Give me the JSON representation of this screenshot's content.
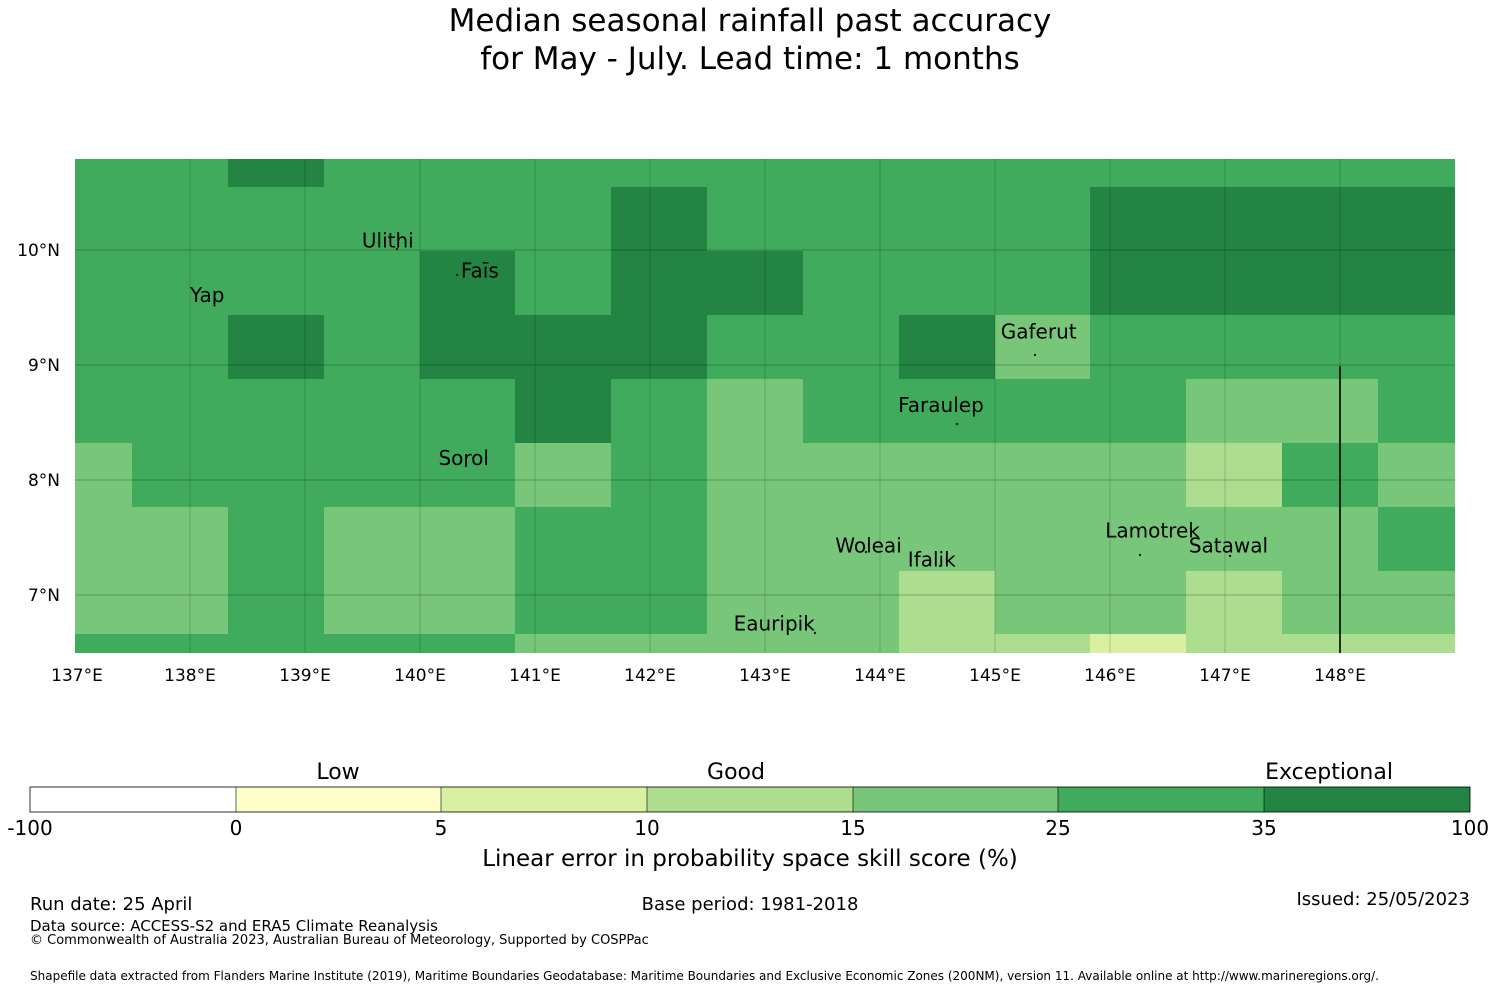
{
  "title_line1": "Median seasonal rainfall past accuracy",
  "title_line2": "for May - July. Lead time: 1 months",
  "map": {
    "lon_labels": [
      "137°E",
      "138°E",
      "139°E",
      "140°E",
      "141°E",
      "142°E",
      "143°E",
      "144°E",
      "145°E",
      "146°E",
      "147°E",
      "148°E"
    ],
    "lat_labels": [
      "10°N",
      "9°N",
      "8°N",
      "7°N"
    ],
    "lon_range": [
      137.0,
      149.0
    ],
    "lat_range": [
      6.5,
      10.8
    ],
    "places": [
      {
        "name": "Yap",
        "lon": 138.15,
        "lat": 9.55
      },
      {
        "name": "Ulithi",
        "lon": 139.72,
        "lat": 10.02
      },
      {
        "name": "Faīs",
        "lon": 140.52,
        "lat": 9.76
      },
      {
        "name": "Gaferut",
        "lon": 145.38,
        "lat": 9.23
      },
      {
        "name": "Faraulep",
        "lon": 144.53,
        "lat": 8.59
      },
      {
        "name": "Sorol",
        "lon": 140.38,
        "lat": 8.13
      },
      {
        "name": "Woleai",
        "lon": 143.9,
        "lat": 7.37
      },
      {
        "name": "Ifalik",
        "lon": 144.45,
        "lat": 7.25
      },
      {
        "name": "Lamotrek",
        "lon": 146.37,
        "lat": 7.5
      },
      {
        "name": "Satawal",
        "lon": 147.03,
        "lat": 7.37
      },
      {
        "name": "Eauripik",
        "lon": 143.08,
        "lat": 6.69
      }
    ],
    "grid_cells": "columns of ~0.83° longitude and rows of ~0.55° latitude, colored by skill category (see colorbar)"
  },
  "colorbar": {
    "category_words": [
      "Low",
      "Good",
      "Exceptional"
    ],
    "ticks": [
      "-100",
      "0",
      "5",
      "10",
      "15",
      "25",
      "35",
      "100"
    ],
    "colors": [
      "#ffffff",
      "#ffffcc",
      "#d9f0a3",
      "#addd8e",
      "#78c679",
      "#41ab5d",
      "#238443"
    ],
    "title": "Linear error in probability space skill score (%)"
  },
  "footer": {
    "run_date": "Run date: 25 April",
    "base_period": "Base period: 1981-2018",
    "issued": "Issued: 25/05/2023",
    "data_source": "Data source: ACCESS-S2 and ERA5 Climate Reanalysis",
    "copyright": "© Commonwealth of Australia 2023, Australian Bureau of Meteorology, Supported by COSPPac",
    "shapefile": "Shapefile data extracted from Flanders Marine Institute (2019), Maritime Boundaries Geodatabase: Maritime Boundaries and Exclusive Economic Zones (200NM), version 11. Available online at http://www.marineregions.org/."
  }
}
